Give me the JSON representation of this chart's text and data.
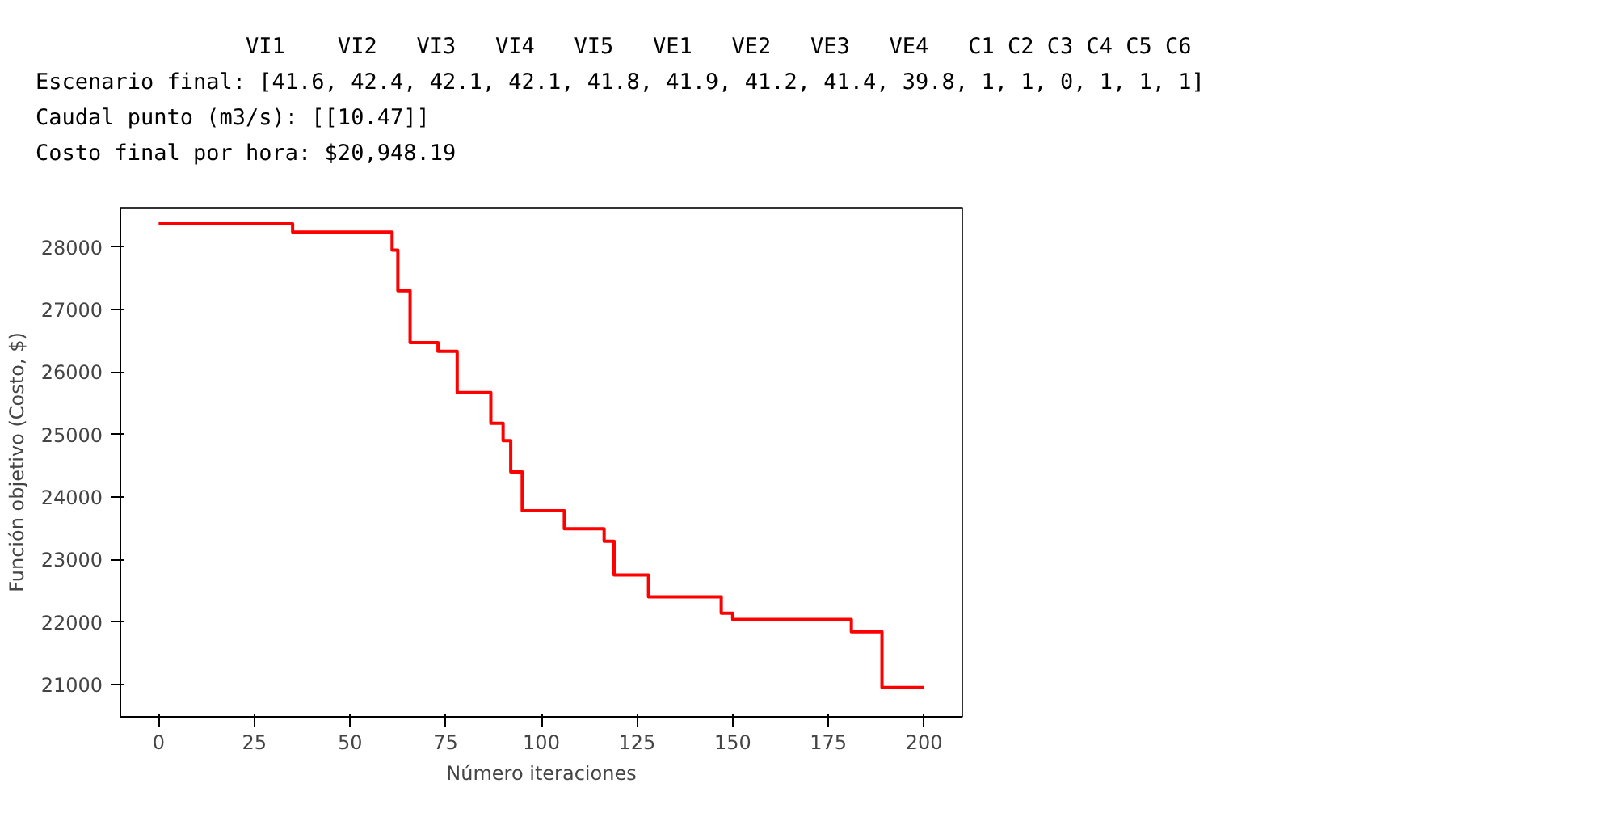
{
  "chart_data": {
    "type": "step",
    "annotations": [
      "                VI1    VI2   VI3   VI4   VI5   VE1   VE2   VE3   VE4   C1 C2 C3 C4 C5 C6",
      "Escenario final: [41.6, 42.4, 42.1, 42.1, 41.8, 41.9, 41.2, 41.4, 39.8, 1, 1, 0, 1, 1, 1]",
      "Caudal punto (m3/s): [[10.47]]",
      "Costo final por hora: $20,948.19"
    ],
    "xlabel": "Número iteraciones",
    "ylabel": "Función objetivo (Costo, $)",
    "x": [
      0,
      35,
      61,
      62.5,
      65.7,
      73,
      78,
      86.8,
      90,
      92,
      95,
      106,
      116.4,
      119,
      128,
      147,
      150,
      181,
      189,
      200
    ],
    "series": [
      {
        "color": "#ff0000",
        "values": [
          28370,
          28240,
          27950,
          27300,
          26470,
          26330,
          25670,
          25180,
          24900,
          24400,
          23780,
          23490,
          23290,
          22750,
          22400,
          22140,
          22040,
          21840,
          20950,
          20950
        ]
      }
    ],
    "xlim": [
      -10,
      210
    ],
    "ylim": [
      20480,
      28630
    ],
    "xticks": [
      0,
      25,
      50,
      75,
      100,
      125,
      150,
      175,
      200
    ],
    "yticks": [
      21000,
      22000,
      23000,
      24000,
      25000,
      26000,
      27000,
      28000
    ],
    "grid": false,
    "line_style": "solid"
  }
}
